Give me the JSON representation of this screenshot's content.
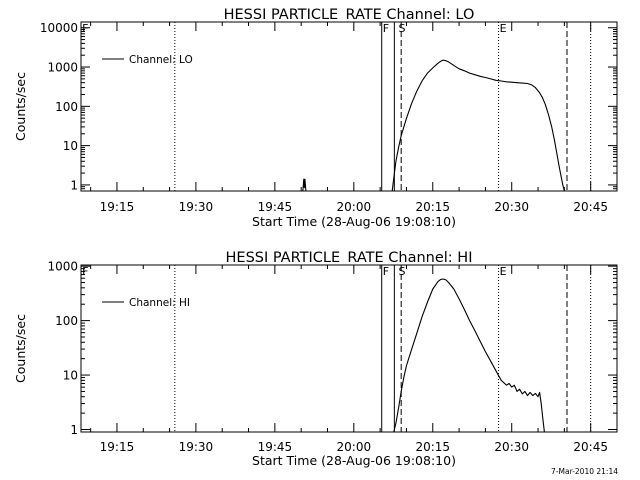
{
  "chart_data": [
    {
      "type": "line",
      "title": "HESSI PARTICLE_RATE Channel: LO",
      "xlabel": "Start Time (28-Aug-06 19:08:10)",
      "ylabel": "Counts/sec",
      "x_unit": "minutes after 19:00 UT, 28-Aug-06",
      "x_tick_labels": [
        "19:15",
        "19:30",
        "19:45",
        "20:00",
        "20:15",
        "20:30",
        "20:45"
      ],
      "x_tick_values": [
        15,
        30,
        45,
        60,
        75,
        90,
        105
      ],
      "xlim": [
        8.17,
        110
      ],
      "y_tick_labels": [
        "1",
        "10",
        "100",
        "1000",
        "10000"
      ],
      "y_tick_values": [
        1,
        10,
        100,
        1000,
        10000
      ],
      "ylim": [
        0.7,
        14000
      ],
      "ylog": true,
      "legend": {
        "entries": [
          "Channel: LO"
        ],
        "placement": "top-left"
      },
      "flags": [
        {
          "label": "F",
          "x": 8.2
        },
        {
          "label": "F",
          "x": 65.3
        },
        {
          "label": "S",
          "x": 68.3
        },
        {
          "label": "E",
          "x": 87.5
        }
      ],
      "vlines": [
        {
          "x": 26.0,
          "style": "dotted"
        },
        {
          "x": 65.3,
          "style": "solid"
        },
        {
          "x": 67.7,
          "style": "solid"
        },
        {
          "x": 69.0,
          "style": "dashed"
        },
        {
          "x": 87.5,
          "style": "dotted"
        },
        {
          "x": 100.5,
          "style": "dashed"
        },
        {
          "x": 105.0,
          "style": "dotted"
        }
      ],
      "series": [
        {
          "name": "Channel: LO",
          "segments": [
            {
              "x": [
                50.3,
                50.5,
                50.6,
                50.7,
                50.9
              ],
              "y": [
                0.7,
                1.4,
                0.85,
                1.4,
                0.7
              ]
            },
            {
              "x": [
                67.3,
                67.6,
                68.0,
                68.5,
                69.0,
                70.0,
                71.0,
                72.0,
                73.0,
                74.0,
                75.0,
                76.0,
                76.5,
                77.0,
                77.5,
                78.0,
                79.0,
                80.0,
                81.0,
                82.0,
                83.0,
                84.0,
                85.0,
                86.0,
                87.0,
                88.0,
                89.0,
                90.0,
                91.0,
                92.0,
                93.0,
                93.8,
                94.5,
                95.2,
                95.8,
                96.4,
                97.0,
                97.6,
                98.1,
                98.6,
                99.0,
                99.4,
                99.7,
                100.0
              ],
              "y": [
                0.7,
                1.5,
                4,
                9,
                18,
                50,
                120,
                250,
                450,
                700,
                950,
                1250,
                1400,
                1500,
                1450,
                1350,
                1100,
                900,
                800,
                700,
                640,
                580,
                540,
                500,
                460,
                440,
                420,
                410,
                400,
                390,
                380,
                350,
                300,
                230,
                170,
                110,
                60,
                30,
                14,
                6,
                3,
                1.6,
                1.0,
                0.7
              ]
            }
          ]
        }
      ]
    },
    {
      "type": "line",
      "title": "HESSI PARTICLE_RATE Channel: HI",
      "xlabel": "Start Time (28-Aug-06 19:08:10)",
      "ylabel": "Counts/sec",
      "x_unit": "minutes after 19:00 UT, 28-Aug-06",
      "x_tick_labels": [
        "19:15",
        "19:30",
        "19:45",
        "20:00",
        "20:15",
        "20:30",
        "20:45"
      ],
      "x_tick_values": [
        15,
        30,
        45,
        60,
        75,
        90,
        105
      ],
      "xlim": [
        8.17,
        110
      ],
      "y_tick_labels": [
        "1",
        "10",
        "100",
        "1000"
      ],
      "y_tick_values": [
        1,
        10,
        100,
        1000
      ],
      "ylim": [
        0.9,
        1050
      ],
      "ylog": true,
      "legend": {
        "entries": [
          "Channel: HI"
        ],
        "placement": "top-left"
      },
      "flags": [
        {
          "label": "F",
          "x": 8.2
        },
        {
          "label": "F",
          "x": 65.3
        },
        {
          "label": "S",
          "x": 68.3
        },
        {
          "label": "E",
          "x": 87.5
        }
      ],
      "vlines": [
        {
          "x": 26.0,
          "style": "dotted"
        },
        {
          "x": 65.3,
          "style": "solid"
        },
        {
          "x": 67.7,
          "style": "solid"
        },
        {
          "x": 69.0,
          "style": "dashed"
        },
        {
          "x": 87.5,
          "style": "dotted"
        },
        {
          "x": 100.5,
          "style": "dashed"
        },
        {
          "x": 105.0,
          "style": "dotted"
        }
      ],
      "series": [
        {
          "name": "Channel: HI",
          "segments": [
            {
              "x": [
                67.6,
                68.0,
                68.5,
                69.0,
                69.5,
                70.0,
                71.0,
                72.0,
                73.0,
                74.0,
                75.0,
                76.0,
                76.5,
                77.0,
                77.5,
                78.0,
                79.0,
                80.0,
                81.0,
                82.0,
                83.0,
                84.0,
                85.0,
                86.0,
                87.0,
                88.0,
                89.0,
                89.5,
                90.0,
                90.5,
                91.0,
                91.5,
                92.0,
                92.5,
                93.0,
                93.5,
                94.0,
                94.5,
                95.0,
                95.3,
                95.6,
                95.9,
                96.2
              ],
              "y": [
                0.9,
                1.3,
                2.5,
                5,
                9,
                15,
                30,
                60,
                120,
                220,
                380,
                520,
                570,
                580,
                560,
                500,
                380,
                250,
                160,
                100,
                65,
                42,
                27,
                18,
                12,
                8,
                6.5,
                7,
                6,
                6.5,
                5,
                5.5,
                4.5,
                5,
                4.2,
                4.8,
                4.2,
                4.6,
                4,
                4.8,
                3,
                1.6,
                0.9
              ]
            }
          ]
        }
      ]
    }
  ],
  "footer": {
    "stamp": "7-Mar-2010 21:14"
  }
}
